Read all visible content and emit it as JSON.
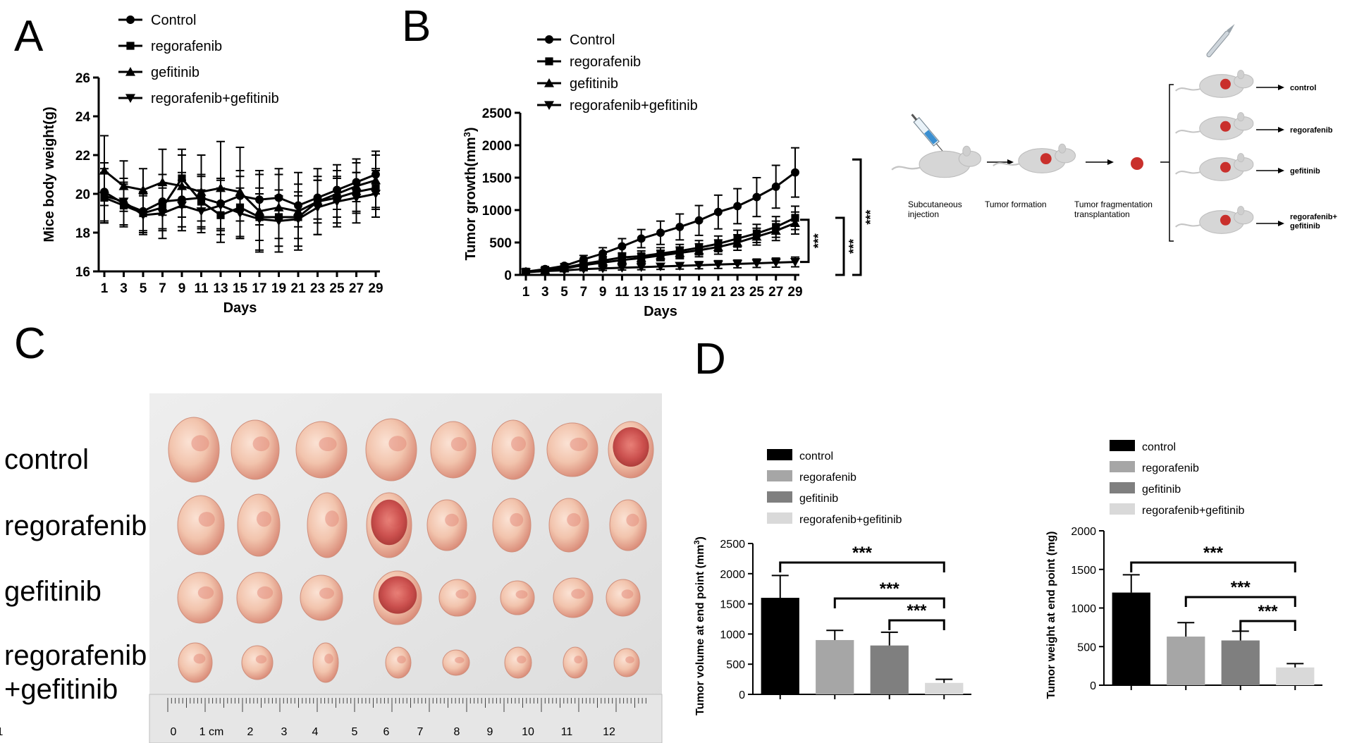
{
  "panels": {
    "A": "A",
    "B": "B",
    "C": "C",
    "D": "D"
  },
  "colors": {
    "black": "#000000",
    "mid_gray": "#a6a6a6",
    "dark_gray": "#7f7f7f",
    "light_gray": "#d9d9d9",
    "tumor": "#c9302c"
  },
  "chart_data": [
    {
      "id": "A",
      "type": "line",
      "title": "",
      "xlabel": "Days",
      "ylabel": "Mice body weight(g)",
      "x": [
        1,
        3,
        5,
        7,
        9,
        11,
        13,
        15,
        17,
        19,
        21,
        23,
        25,
        27,
        29
      ],
      "xticks": [
        "1",
        "3",
        "5",
        "7",
        "9",
        "11",
        "13",
        "15",
        "17",
        "19",
        "21",
        "23",
        "25",
        "27",
        "29"
      ],
      "yticks": [
        "16",
        "18",
        "20",
        "22",
        "24",
        "26"
      ],
      "xlim": [
        1,
        29
      ],
      "ylim": [
        16,
        26
      ],
      "legend_position": "top",
      "series": [
        {
          "name": "Control",
          "marker": "circle",
          "values": [
            20.1,
            19.5,
            19.1,
            19.6,
            19.7,
            19.8,
            19.5,
            19.9,
            19.7,
            19.8,
            19.4,
            19.8,
            20.2,
            20.6,
            21.0
          ],
          "err": [
            1.5,
            1.1,
            1.0,
            1.4,
            1.4,
            1.2,
            1.3,
            1.3,
            1.3,
            1.2,
            1.1,
            1.1,
            1.0,
            1.0,
            1.0
          ]
        },
        {
          "name": "regorafenib",
          "marker": "square",
          "values": [
            19.8,
            19.4,
            19.0,
            19.3,
            20.8,
            19.6,
            18.9,
            19.3,
            18.8,
            18.8,
            18.8,
            19.6,
            19.8,
            20.1,
            20.3
          ],
          "err": [
            1.3,
            1.1,
            1.0,
            1.2,
            1.5,
            1.3,
            1.4,
            1.6,
            1.2,
            1.1,
            1.1,
            1.1,
            1.0,
            1.0,
            1.0
          ]
        },
        {
          "name": "gefitinib",
          "marker": "triangle",
          "values": [
            21.2,
            20.4,
            20.2,
            20.6,
            20.4,
            20.1,
            20.3,
            20.1,
            19.1,
            19.3,
            19.1,
            19.6,
            20.0,
            20.4,
            20.7
          ],
          "err": [
            1.8,
            1.3,
            1.1,
            1.7,
            1.6,
            1.9,
            2.4,
            2.3,
            2.1,
            2.0,
            2.0,
            1.7,
            1.5,
            1.4,
            1.5
          ]
        },
        {
          "name": "regorafenib+gefitinib",
          "marker": "triangle-down",
          "values": [
            19.9,
            19.6,
            18.9,
            19.0,
            19.4,
            19.1,
            19.4,
            19.0,
            18.7,
            18.6,
            18.7,
            19.3,
            19.6,
            19.8,
            20.0
          ],
          "err": [
            1.4,
            1.2,
            1.0,
            1.3,
            1.3,
            1.1,
            1.3,
            1.3,
            1.6,
            1.6,
            1.4,
            1.4,
            1.3,
            1.3,
            1.2
          ]
        }
      ]
    },
    {
      "id": "B",
      "type": "line",
      "title": "",
      "xlabel": "Days",
      "ylabel": "Tumor growth(mm",
      "ylabel_sup": "3",
      "ylabel_end": ")",
      "x": [
        1,
        3,
        5,
        7,
        9,
        11,
        13,
        15,
        17,
        19,
        21,
        23,
        25,
        27,
        29
      ],
      "xticks": [
        "1",
        "3",
        "5",
        "7",
        "9",
        "11",
        "13",
        "15",
        "17",
        "19",
        "21",
        "23",
        "25",
        "27",
        "29"
      ],
      "yticks": [
        "0",
        "500",
        "1000",
        "1500",
        "2000",
        "2500"
      ],
      "xlim": [
        1,
        29
      ],
      "ylim": [
        0,
        2500
      ],
      "legend_position": "top",
      "significance": [
        "***",
        "***",
        "***"
      ],
      "series": [
        {
          "name": "Control",
          "marker": "circle",
          "values": [
            50,
            90,
            140,
            240,
            330,
            440,
            560,
            650,
            740,
            840,
            970,
            1060,
            1200,
            1360,
            1580
          ],
          "err": [
            20,
            25,
            35,
            60,
            90,
            120,
            140,
            180,
            200,
            230,
            260,
            270,
            300,
            330,
            380
          ]
        },
        {
          "name": "regorafenib",
          "marker": "square",
          "values": [
            50,
            80,
            110,
            170,
            220,
            270,
            290,
            330,
            370,
            420,
            480,
            560,
            640,
            740,
            880
          ],
          "err": [
            20,
            25,
            30,
            50,
            60,
            70,
            80,
            90,
            100,
            110,
            120,
            130,
            140,
            160,
            180
          ]
        },
        {
          "name": "gefitinib",
          "marker": "triangle",
          "values": [
            50,
            75,
            100,
            150,
            190,
            230,
            260,
            300,
            340,
            380,
            430,
            500,
            590,
            680,
            800
          ],
          "err": [
            20,
            25,
            30,
            40,
            50,
            60,
            70,
            80,
            90,
            100,
            110,
            120,
            130,
            150,
            170
          ]
        },
        {
          "name": "regorafenib+gefitinib",
          "marker": "triangle-down",
          "values": [
            40,
            60,
            70,
            90,
            100,
            110,
            120,
            130,
            140,
            150,
            160,
            170,
            180,
            190,
            200
          ],
          "err": [
            15,
            20,
            20,
            25,
            30,
            35,
            40,
            45,
            50,
            55,
            60,
            60,
            65,
            70,
            75
          ]
        }
      ]
    },
    {
      "id": "D1",
      "type": "bar",
      "title": "",
      "categories": [
        "control",
        "regorafenib",
        "gefitinib",
        "regorafenib+gefitinib"
      ],
      "values": [
        1600,
        900,
        810,
        190
      ],
      "err": [
        370,
        160,
        220,
        60
      ],
      "ylabel": "Tumor volume at end point (mm",
      "ylabel_sup": "3",
      "ylabel_end": ")",
      "yticks": [
        "0",
        "500",
        "1000",
        "1500",
        "2000",
        "2500"
      ],
      "ylim": [
        0,
        2500
      ],
      "significance": [
        "***",
        "***",
        "***"
      ],
      "legend_position": "top"
    },
    {
      "id": "D2",
      "type": "bar",
      "title": "",
      "categories": [
        "control",
        "regorafenib",
        "gefitinib",
        "regorafenib+gefitinib"
      ],
      "values": [
        1200,
        630,
        580,
        230
      ],
      "err": [
        230,
        180,
        120,
        50
      ],
      "ylabel": "Tumor weight at end point (mg)",
      "yticks": [
        "0",
        "500",
        "1000",
        "1500",
        "2000"
      ],
      "ylim": [
        0,
        2000
      ],
      "significance": [
        "***",
        "***",
        "***"
      ],
      "legend_position": "top"
    }
  ],
  "schematic": {
    "labels": {
      "injection": [
        "Subcutaneous",
        "injection"
      ],
      "formation": "Tumor formation",
      "fragmentation": [
        "Tumor fragmentation",
        "transplantation"
      ]
    },
    "groups": [
      "control",
      "regorafenib",
      "gefitinib",
      [
        "regorafenib+",
        "gefitinib"
      ]
    ]
  },
  "photo": {
    "row_labels": [
      "control",
      "regorafenib",
      "gefitinib",
      "regorafenib",
      "+gefitinib"
    ],
    "ruler_labels": [
      "0",
      "1 cm",
      "2",
      "3",
      "4",
      "5",
      "6",
      "7",
      "8",
      "9",
      "10",
      "11",
      "12",
      "1"
    ]
  }
}
